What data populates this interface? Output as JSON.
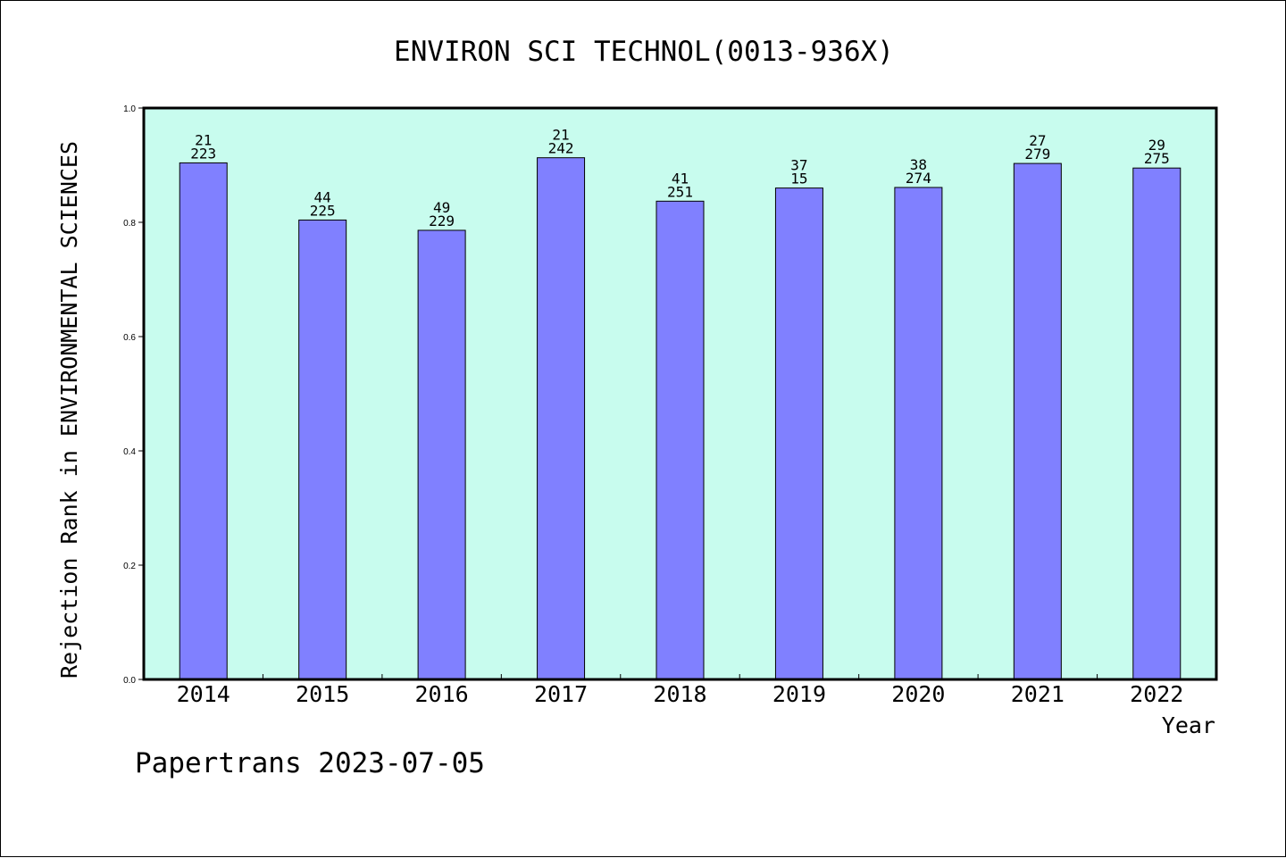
{
  "chart_data": {
    "type": "bar",
    "title": "ENVIRON SCI TECHNOL(0013-936X)",
    "xlabel": "Year",
    "ylabel": "Rejection Rank in ENVIRONMENTAL SCIENCES",
    "categories": [
      "2014",
      "2015",
      "2016",
      "2017",
      "2018",
      "2019",
      "2020",
      "2021",
      "2022"
    ],
    "values": [
      0.904,
      0.804,
      0.786,
      0.913,
      0.837,
      0.86,
      0.861,
      0.903,
      0.895
    ],
    "bar_labels_top": [
      "21",
      "44",
      "49",
      "21",
      "41",
      "37",
      "38",
      "27",
      "29"
    ],
    "bar_labels_bottom": [
      "223",
      "225",
      "229",
      "242",
      "251",
      "15",
      "274",
      "279",
      "275"
    ],
    "ylim": [
      0,
      1.0
    ],
    "yticks": [
      "0.0",
      "0.2",
      "0.4",
      "0.6",
      "0.8",
      "1.0"
    ],
    "grid": false,
    "colors": {
      "plot_background": "#c8fcee",
      "bar_fill": "#8080ff",
      "bar_stroke": "#000000"
    }
  },
  "footer": {
    "text": "Papertrans 2023-07-05"
  }
}
